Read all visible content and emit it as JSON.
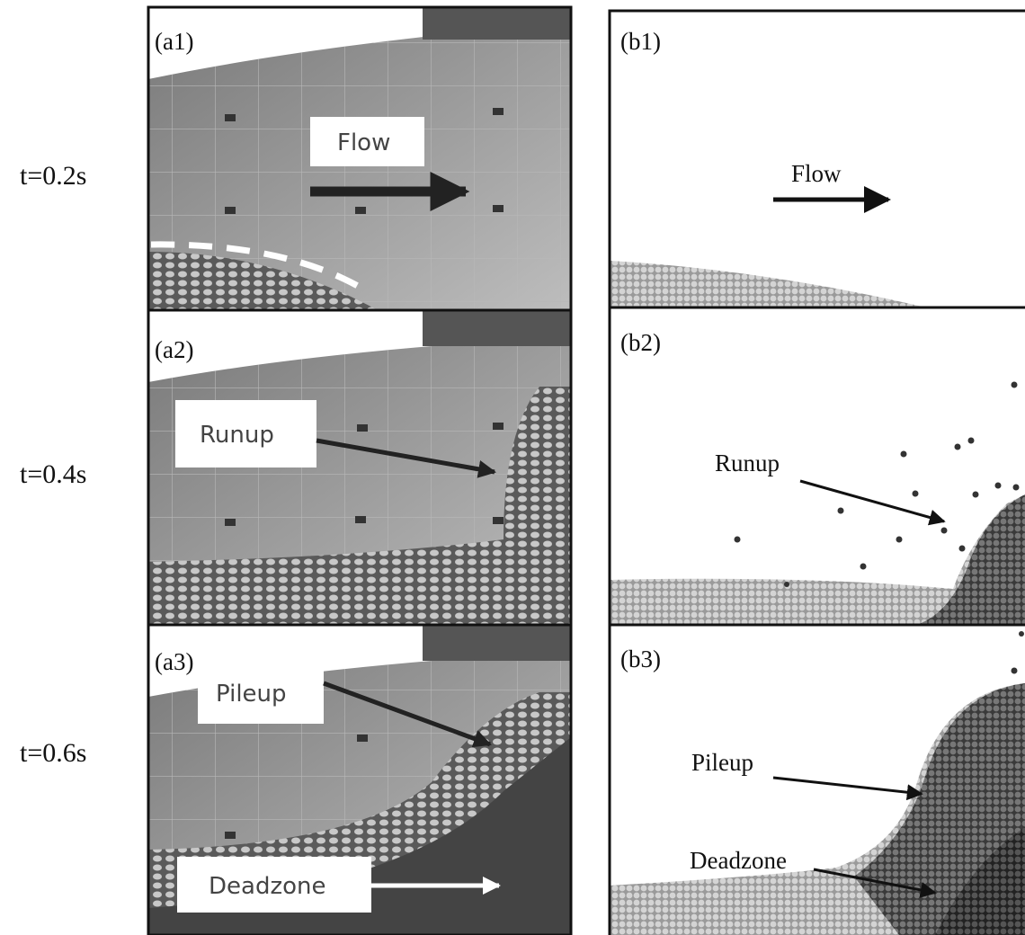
{
  "rows": [
    {
      "time": "t=0.2s",
      "left": {
        "label": "(a1)",
        "annotations": [
          "Flow"
        ]
      },
      "right": {
        "label": "(b1)",
        "annotations": [
          "Flow"
        ]
      }
    },
    {
      "time": "t=0.4s",
      "left": {
        "label": "(a2)",
        "annotations": [
          "Runup"
        ]
      },
      "right": {
        "label": "(b2)",
        "annotations": [
          "Runup"
        ]
      }
    },
    {
      "time": "t=0.6s",
      "left": {
        "label": "(a3)",
        "annotations": [
          "Pileup",
          "Deadzone"
        ]
      },
      "right": {
        "label": "(b3)",
        "annotations": [
          "Pileup",
          "Deadzone"
        ]
      }
    }
  ]
}
